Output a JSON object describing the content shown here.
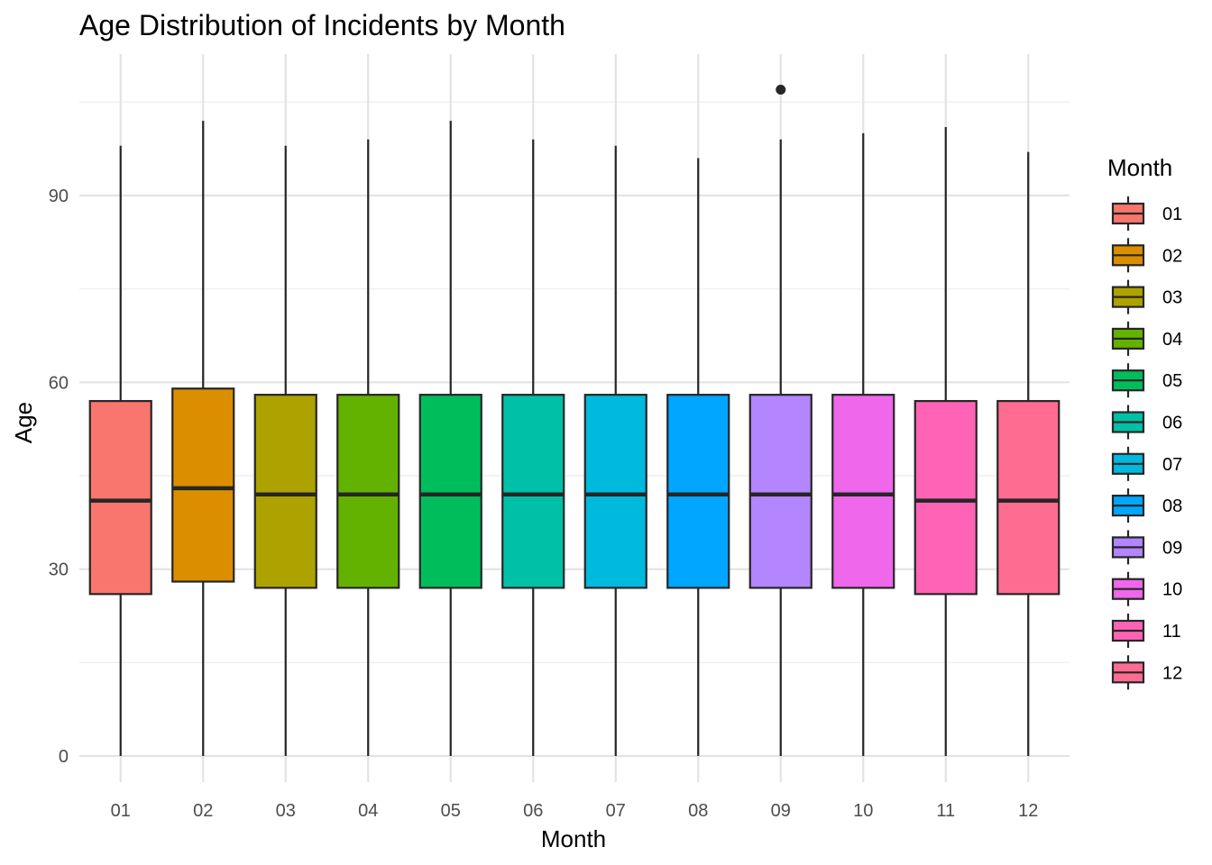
{
  "chart_data": {
    "type": "boxplot",
    "title": "Age Distribution of Incidents by Month",
    "xlabel": "Month",
    "ylabel": "Age",
    "ylim": [
      -7,
      112
    ],
    "y_ticks": [
      0,
      30,
      60,
      90
    ],
    "y_minor_ticks": [
      15,
      45,
      75,
      105
    ],
    "grid": true,
    "legend": {
      "title": "Month",
      "position": "right"
    },
    "categories": [
      "01",
      "02",
      "03",
      "04",
      "05",
      "06",
      "07",
      "08",
      "09",
      "10",
      "11",
      "12"
    ],
    "colors": [
      "#F8766D",
      "#DB8E00",
      "#AEA200",
      "#64B200",
      "#00BD5C",
      "#00C1A7",
      "#00BADE",
      "#00A6FF",
      "#B385FF",
      "#EF67EB",
      "#FF63B6",
      "#FF6C91"
    ],
    "boxes": [
      {
        "min": 0,
        "q1": 26,
        "median": 41,
        "q3": 57,
        "max": 98,
        "outliers": []
      },
      {
        "min": 0,
        "q1": 28,
        "median": 43,
        "q3": 59,
        "max": 102,
        "outliers": []
      },
      {
        "min": 0,
        "q1": 27,
        "median": 42,
        "q3": 58,
        "max": 98,
        "outliers": []
      },
      {
        "min": 0,
        "q1": 27,
        "median": 42,
        "q3": 58,
        "max": 99,
        "outliers": []
      },
      {
        "min": 0,
        "q1": 27,
        "median": 42,
        "q3": 58,
        "max": 102,
        "outliers": []
      },
      {
        "min": 0,
        "q1": 27,
        "median": 42,
        "q3": 58,
        "max": 99,
        "outliers": []
      },
      {
        "min": 0,
        "q1": 27,
        "median": 42,
        "q3": 58,
        "max": 98,
        "outliers": []
      },
      {
        "min": 0,
        "q1": 27,
        "median": 42,
        "q3": 58,
        "max": 96,
        "outliers": []
      },
      {
        "min": 0,
        "q1": 27,
        "median": 42,
        "q3": 58,
        "max": 99,
        "outliers": [
          107
        ]
      },
      {
        "min": 0,
        "q1": 27,
        "median": 42,
        "q3": 58,
        "max": 100,
        "outliers": []
      },
      {
        "min": 0,
        "q1": 26,
        "median": 41,
        "q3": 57,
        "max": 101,
        "outliers": []
      },
      {
        "min": 0,
        "q1": 26,
        "median": 41,
        "q3": 57,
        "max": 97,
        "outliers": []
      }
    ]
  }
}
